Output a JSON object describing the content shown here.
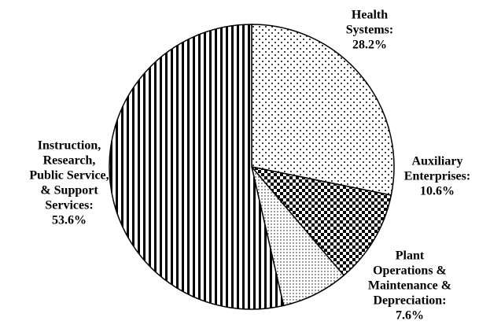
{
  "chart_data": {
    "type": "pie",
    "categories": [
      [
        "Health",
        "Systems:"
      ],
      [
        "Auxiliary",
        "Enterprises:"
      ],
      [
        "Plant",
        "Operations &",
        "Maintenance &",
        "Depreciation:"
      ],
      [
        "Instruction,",
        "Research,",
        "Public Service,",
        "& Support",
        "Services:"
      ]
    ],
    "values": [
      28.2,
      10.6,
      7.6,
      53.6
    ],
    "value_labels": [
      "28.2%",
      "10.6%",
      "7.6%",
      "53.6%"
    ],
    "patterns": [
      "dots",
      "checker",
      "fine-dots",
      "stripes"
    ]
  }
}
